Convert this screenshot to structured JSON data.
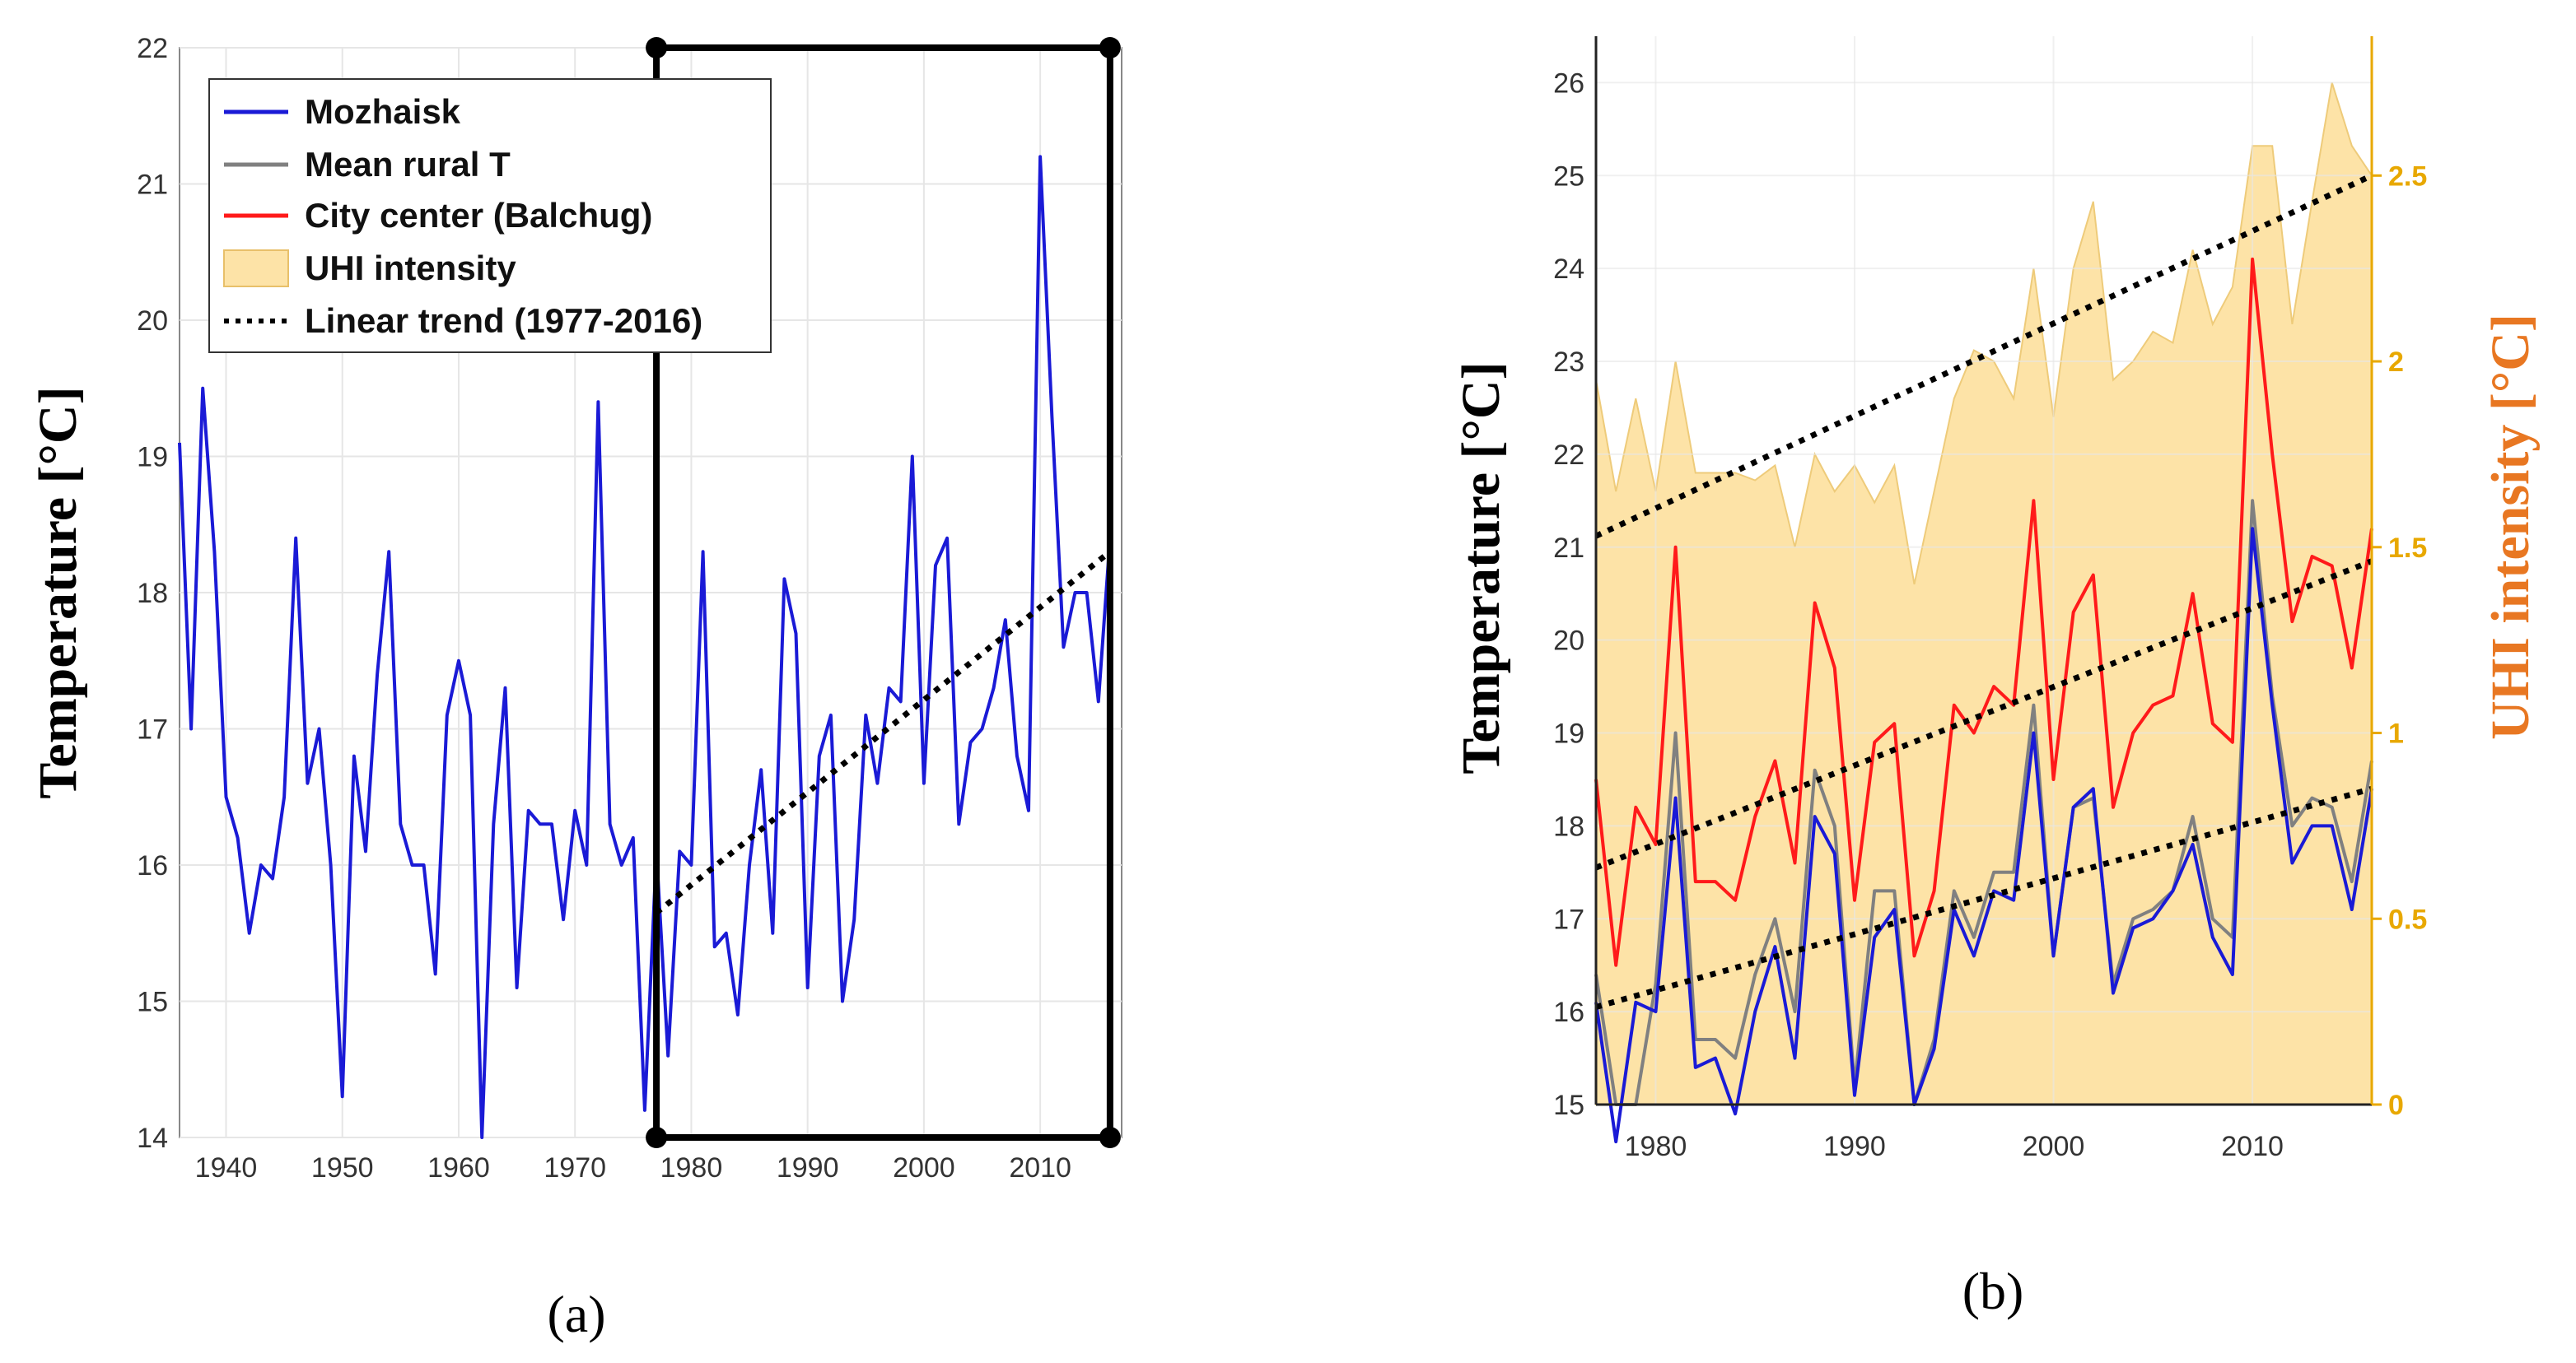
{
  "chart_data": [
    {
      "panel": "a",
      "panel_label": "(a)",
      "type": "line",
      "ylabel": "Temperature [°C]",
      "xlim": [
        1936,
        2017
      ],
      "ylim": [
        14,
        22
      ],
      "xticks": [
        1940,
        1950,
        1960,
        1970,
        1980,
        1990,
        2000,
        2010
      ],
      "yticks": [
        14,
        15,
        16,
        17,
        18,
        19,
        20,
        21,
        22
      ],
      "highlight_box": {
        "x": [
          1977,
          2016
        ],
        "y": [
          14,
          22
        ]
      },
      "legend": [
        {
          "label": "Mozhaisk",
          "color": "#1a1ad6"
        },
        {
          "label": "Mean rural T",
          "color": "#808080"
        },
        {
          "label": "City center (Balchug)",
          "color": "#ff1a1a"
        },
        {
          "label": "UHI intensity",
          "color": "#fde3a7"
        },
        {
          "label": "Linear trend (1977-2016)",
          "color": "#000000"
        }
      ],
      "series": [
        {
          "name": "Mozhaisk",
          "color": "#1a1ad6",
          "x": [
            1936,
            1937,
            1938,
            1939,
            1940,
            1941,
            1942,
            1943,
            1944,
            1945,
            1946,
            1947,
            1948,
            1949,
            1950,
            1951,
            1952,
            1953,
            1954,
            1955,
            1956,
            1957,
            1958,
            1959,
            1960,
            1961,
            1962,
            1963,
            1964,
            1965,
            1966,
            1967,
            1968,
            1969,
            1970,
            1971,
            1972,
            1973,
            1974,
            1975,
            1976,
            1977,
            1978,
            1979,
            1980,
            1981,
            1982,
            1983,
            1984,
            1985,
            1986,
            1987,
            1988,
            1989,
            1990,
            1991,
            1992,
            1993,
            1994,
            1995,
            1996,
            1997,
            1998,
            1999,
            2000,
            2001,
            2002,
            2003,
            2004,
            2005,
            2006,
            2007,
            2008,
            2009,
            2010,
            2011,
            2012,
            2013,
            2014,
            2015,
            2016
          ],
          "values": [
            19.1,
            17.0,
            19.5,
            18.3,
            16.5,
            16.2,
            15.5,
            16.0,
            15.9,
            16.5,
            18.4,
            16.6,
            17.0,
            16.0,
            14.3,
            16.8,
            16.1,
            17.4,
            18.3,
            16.3,
            16.0,
            16.0,
            15.2,
            17.1,
            17.5,
            17.1,
            14.0,
            16.3,
            17.3,
            15.1,
            16.4,
            16.3,
            16.3,
            15.6,
            16.4,
            16.0,
            19.4,
            16.3,
            16.0,
            16.2,
            14.2,
            16.1,
            14.6,
            16.1,
            16.0,
            18.3,
            15.4,
            15.5,
            14.9,
            16.0,
            16.7,
            15.5,
            18.1,
            17.7,
            15.1,
            16.8,
            17.1,
            15.0,
            15.6,
            17.1,
            16.6,
            17.3,
            17.2,
            19.0,
            16.6,
            18.2,
            18.4,
            16.3,
            16.9,
            17.0,
            17.3,
            17.8,
            16.8,
            16.4,
            21.2,
            19.3,
            17.6,
            18.0,
            18.0,
            17.2,
            18.4
          ]
        },
        {
          "name": "Linear trend (1977-2016)",
          "style": "dotted",
          "color": "#000000",
          "x": [
            1977,
            2016
          ],
          "values": [
            15.65,
            18.3
          ]
        }
      ]
    },
    {
      "panel": "b",
      "panel_label": "(b)",
      "type": "line",
      "ylabel": "Temperature [°C]",
      "y2label": "UHI intensity [°C]",
      "xlim": [
        1977,
        2016
      ],
      "ylim": [
        15,
        26.5
      ],
      "y2lim": [
        0,
        2.875
      ],
      "xticks": [
        1980,
        1990,
        2000,
        2010
      ],
      "yticks": [
        15,
        16,
        17,
        18,
        19,
        20,
        21,
        22,
        23,
        24,
        25,
        26
      ],
      "y2ticks": [
        0,
        0.5,
        1,
        1.5,
        2,
        2.5
      ],
      "y2tick_labels": [
        "0",
        "0.5",
        "1",
        "1.5",
        "2",
        "2.5"
      ],
      "x": [
        1977,
        1978,
        1979,
        1980,
        1981,
        1982,
        1983,
        1984,
        1985,
        1986,
        1987,
        1988,
        1989,
        1990,
        1991,
        1992,
        1993,
        1994,
        1995,
        1996,
        1997,
        1998,
        1999,
        2000,
        2001,
        2002,
        2003,
        2004,
        2005,
        2006,
        2007,
        2008,
        2009,
        2010,
        2011,
        2012,
        2013,
        2014,
        2015,
        2016
      ],
      "series": [
        {
          "name": "UHI intensity",
          "type": "area",
          "axis": "right",
          "color": "#fde3a7",
          "values": [
            1.95,
            1.65,
            1.9,
            1.65,
            2.0,
            1.7,
            1.7,
            1.7,
            1.68,
            1.72,
            1.5,
            1.75,
            1.65,
            1.72,
            1.62,
            1.72,
            1.4,
            1.65,
            1.9,
            2.03,
            2.0,
            1.9,
            2.25,
            1.85,
            2.25,
            2.43,
            1.95,
            2.0,
            2.08,
            2.05,
            2.3,
            2.1,
            2.2,
            2.58,
            2.58,
            2.1,
            2.43,
            2.75,
            2.58,
            2.5
          ]
        },
        {
          "name": "Mean rural T",
          "color": "#808080",
          "values": [
            16.4,
            15.0,
            15.0,
            16.3,
            19.0,
            15.7,
            15.7,
            15.5,
            16.4,
            17.0,
            16.0,
            18.6,
            18.0,
            15.2,
            17.3,
            17.3,
            15.0,
            15.7,
            17.3,
            16.8,
            17.5,
            17.5,
            19.3,
            16.6,
            18.2,
            18.3,
            16.3,
            17.0,
            17.1,
            17.3,
            18.1,
            17.0,
            16.8,
            21.5,
            19.4,
            18.0,
            18.3,
            18.2,
            17.4,
            18.7
          ]
        },
        {
          "name": "Mozhaisk",
          "color": "#1a1ad6",
          "values": [
            16.1,
            14.6,
            16.1,
            16.0,
            18.3,
            15.4,
            15.5,
            14.9,
            16.0,
            16.7,
            15.5,
            18.1,
            17.7,
            15.1,
            16.8,
            17.1,
            15.0,
            15.6,
            17.1,
            16.6,
            17.3,
            17.2,
            19.0,
            16.6,
            18.2,
            18.4,
            16.2,
            16.9,
            17.0,
            17.3,
            17.8,
            16.8,
            16.4,
            21.2,
            19.3,
            17.6,
            18.0,
            18.0,
            17.1,
            18.4
          ]
        },
        {
          "name": "City center (Balchug)",
          "color": "#ff1a1a",
          "values": [
            18.5,
            16.5,
            18.2,
            17.8,
            21.0,
            17.4,
            17.4,
            17.2,
            18.1,
            18.7,
            17.6,
            20.4,
            19.7,
            17.2,
            18.9,
            19.1,
            16.6,
            17.3,
            19.3,
            19.0,
            19.5,
            19.3,
            21.5,
            18.5,
            20.3,
            20.7,
            18.2,
            19.0,
            19.3,
            19.4,
            20.5,
            19.1,
            18.9,
            24.1,
            22.0,
            20.2,
            20.9,
            20.8,
            19.7,
            21.2
          ]
        }
      ],
      "trends": [
        {
          "name": "UHI trend",
          "axis": "right",
          "x": [
            1977,
            2016
          ],
          "values": [
            1.53,
            2.5
          ]
        },
        {
          "name": "City center trend",
          "axis": "left",
          "x": [
            1977,
            2016
          ],
          "values": [
            17.55,
            20.85
          ]
        },
        {
          "name": "Mozhaisk trend",
          "axis": "left",
          "x": [
            1977,
            2016
          ],
          "values": [
            16.05,
            18.4
          ]
        }
      ]
    }
  ]
}
